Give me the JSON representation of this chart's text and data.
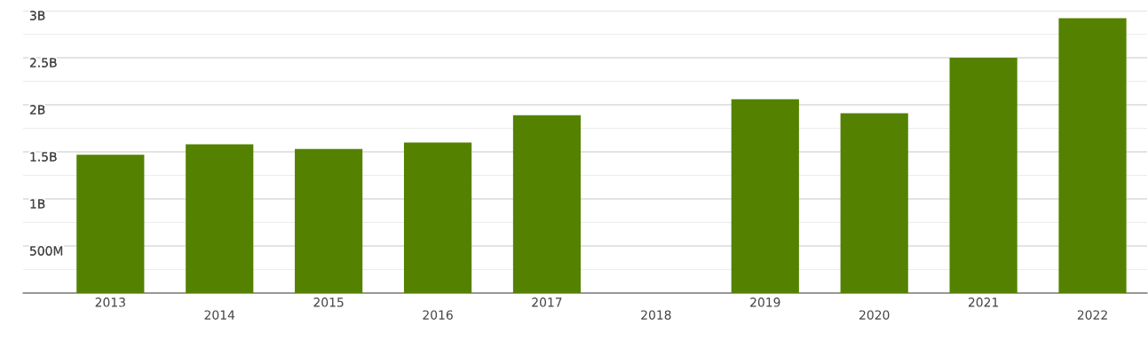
{
  "chart_data": {
    "type": "bar",
    "categories": [
      "2013",
      "2014",
      "2015",
      "2016",
      "2017",
      "2018",
      "2019",
      "2020",
      "2021",
      "2022"
    ],
    "values": [
      1470000000,
      1580000000,
      1530000000,
      1600000000,
      1890000000,
      null,
      2060000000,
      1910000000,
      2500000000,
      2920000000
    ],
    "color": "#548200",
    "ylim": [
      0,
      3000000000
    ],
    "yticks": [
      {
        "value": 250000000,
        "label": null
      },
      {
        "value": 500000000,
        "label": "500M"
      },
      {
        "value": 750000000,
        "label": null
      },
      {
        "value": 1000000000,
        "label": "1B"
      },
      {
        "value": 1250000000,
        "label": null
      },
      {
        "value": 1500000000,
        "label": "1.5B"
      },
      {
        "value": 1750000000,
        "label": null
      },
      {
        "value": 2000000000,
        "label": "2B"
      },
      {
        "value": 2250000000,
        "label": null
      },
      {
        "value": 2500000000,
        "label": "2.5B"
      },
      {
        "value": 2750000000,
        "label": null
      },
      {
        "value": 3000000000,
        "label": "3B"
      }
    ],
    "grid": "y"
  }
}
